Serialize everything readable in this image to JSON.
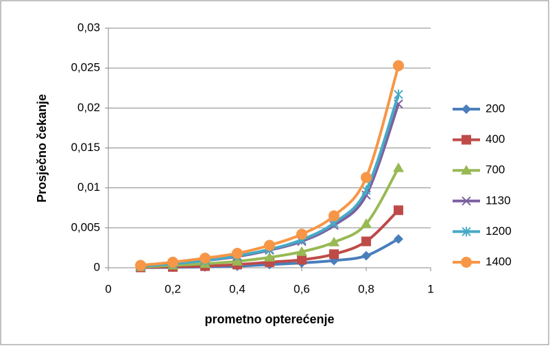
{
  "chart_data": {
    "type": "line",
    "smooth": true,
    "x_label": "prometno opterećenje",
    "y_label": "Prosječno čekanje",
    "x": [
      0.1,
      0.2,
      0.3,
      0.4,
      0.5,
      0.6,
      0.7,
      0.8,
      0.9
    ],
    "series": [
      {
        "name": "200",
        "color": "#4a7ebb",
        "marker": "diamond",
        "values": [
          2e-05,
          5e-05,
          0.0001,
          0.0002,
          0.0004,
          0.0006,
          0.0009,
          0.0015,
          0.0036
        ]
      },
      {
        "name": "400",
        "color": "#be4b48",
        "marker": "square",
        "values": [
          4e-05,
          0.0001,
          0.0002,
          0.0004,
          0.0007,
          0.001,
          0.0017,
          0.0033,
          0.0072
        ]
      },
      {
        "name": "700",
        "color": "#98b954",
        "marker": "triangle",
        "values": [
          0.0001,
          0.0003,
          0.0005,
          0.0008,
          0.0013,
          0.002,
          0.0032,
          0.0055,
          0.0125
        ]
      },
      {
        "name": "1130",
        "color": "#7d60a0",
        "marker": "x",
        "values": [
          0.0002,
          0.0005,
          0.0009,
          0.0014,
          0.0022,
          0.0033,
          0.0053,
          0.0091,
          0.0205
        ]
      },
      {
        "name": "1200",
        "color": "#46aac5",
        "marker": "star",
        "values": [
          0.0002,
          0.0005,
          0.0009,
          0.0015,
          0.0023,
          0.0035,
          0.0056,
          0.0097,
          0.0217
        ]
      },
      {
        "name": "1400",
        "color": "#f79646",
        "marker": "circle",
        "values": [
          0.0003,
          0.0007,
          0.0012,
          0.0018,
          0.0028,
          0.0042,
          0.0065,
          0.0113,
          0.0253
        ]
      }
    ],
    "xlim": [
      0,
      1
    ],
    "xticks": [
      0,
      {
        "value": 0.2,
        "label": "0,2"
      },
      {
        "value": 0.4,
        "label": "0,4"
      },
      {
        "value": 0.6,
        "label": "0,6"
      },
      {
        "value": 0.8,
        "label": "0,8"
      },
      1
    ],
    "ylim": [
      0,
      0.03
    ],
    "yticks": [
      0,
      {
        "value": 0.005,
        "label": "0,005"
      },
      {
        "value": 0.01,
        "label": "0,01"
      },
      {
        "value": 0.015,
        "label": "0,015"
      },
      {
        "value": 0.02,
        "label": "0,02"
      },
      {
        "value": 0.025,
        "label": "0,025"
      },
      {
        "value": 0.03,
        "label": "0,03"
      }
    ],
    "grid": true,
    "legend": "right"
  }
}
